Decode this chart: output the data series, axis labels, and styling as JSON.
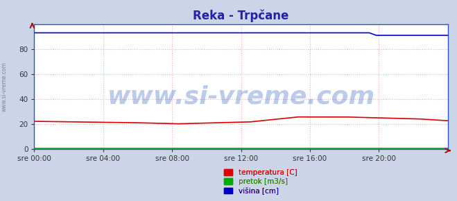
{
  "title": "Reka - Trpčane",
  "title_color": "#2222aa",
  "title_fontsize": 12,
  "bg_color": "#ccd4e8",
  "plot_bg_color": "#ffffff",
  "xlabel_ticks": [
    "sre 00:00",
    "sre 04:00",
    "sre 08:00",
    "sre 12:00",
    "sre 16:00",
    "sre 20:00"
  ],
  "tick_positions": [
    0,
    288,
    576,
    864,
    1152,
    1440
  ],
  "total_points": 1728,
  "ylim": [
    0,
    100
  ],
  "yticks": [
    0,
    20,
    40,
    60,
    80
  ],
  "grid_color": "#ffaaaa",
  "grid_linestyle": ":",
  "watermark": "www.si-vreme.com",
  "watermark_color": "#1144bb",
  "watermark_alpha": 0.28,
  "watermark_fontsize": 26,
  "axis_color": "#2255cc",
  "legend_items": [
    {
      "label": "temperatura [C]",
      "color": "#dd0000"
    },
    {
      "label": "pretok [m3/s]",
      "color": "#00aa00"
    },
    {
      "label": "višina [cm]",
      "color": "#0000cc"
    }
  ],
  "side_label": "www.si-vreme.com",
  "side_label_color": "#777788",
  "side_label_fontsize": 5.5
}
